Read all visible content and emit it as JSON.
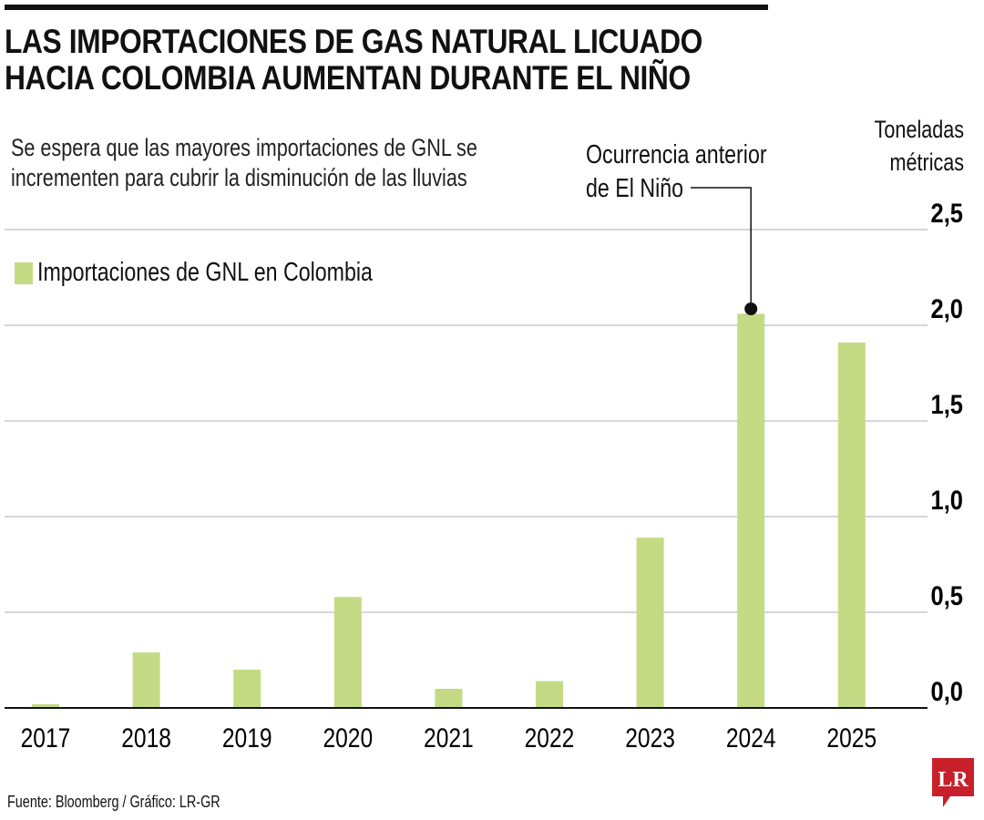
{
  "header": {
    "title_line1": "LAS IMPORTACIONES DE GAS NATURAL LICUADO",
    "title_line2": "HACIA COLOMBIA AUMENTAN DURANTE EL NIÑO",
    "subtitle_line1": "Se espera que las mayores importaciones de GNL se",
    "subtitle_line2": "incrementen para cubrir la disminución de las lluvias"
  },
  "footer": {
    "source": "Fuente: Bloomberg / Gráfico: LR-GR",
    "logo": "LR"
  },
  "colors": {
    "bar": "#c5da85",
    "grid": "#c8c8c8",
    "axis": "#111111",
    "logo": "#c8202a"
  },
  "chart_data": {
    "type": "bar",
    "title": "LAS IMPORTACIONES DE GAS NATURAL LICUADO HACIA COLOMBIA AUMENTAN DURANTE EL NIÑO",
    "ylabel_line1": "Toneladas",
    "ylabel_line2": "métricas",
    "categories": [
      "2017",
      "2018",
      "2019",
      "2020",
      "2021",
      "2022",
      "2023",
      "2024",
      "2025"
    ],
    "series": [
      {
        "name": "Importaciones de GNL en Colombia",
        "values": [
          0.02,
          0.29,
          0.2,
          0.58,
          0.1,
          0.14,
          0.89,
          2.06,
          1.91
        ]
      }
    ],
    "ylim": [
      0,
      2.5
    ],
    "yticks": [
      "0,0",
      "0,5",
      "1,0",
      "1,5",
      "2,0",
      "2,5"
    ],
    "grid": true,
    "legend_position": "top-left",
    "y_axis_position": "right",
    "annotation": {
      "category": "2024",
      "line1": "Ocurrencia anterior",
      "line2": "de El Niño"
    }
  }
}
